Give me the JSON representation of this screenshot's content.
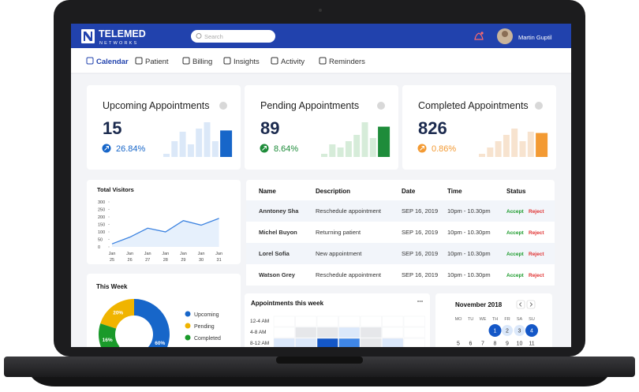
{
  "header": {
    "brand": "TELEMED",
    "brand_sub": "NETWORKS",
    "search_placeholder": "Search",
    "user_name": "Martin Guptil"
  },
  "nav": [
    "Calendar",
    "Patient",
    "Billing",
    "Insights",
    "Activity",
    "Reminders"
  ],
  "cards": [
    {
      "title": "Upcoming Appointments",
      "value": "15",
      "change": "26.84%",
      "color": "#1766c9",
      "light_color": "#dbe8f8",
      "bars": [
        5,
        25,
        40,
        20,
        45,
        55,
        25,
        42
      ]
    },
    {
      "title": "Pending Appointments",
      "value": "89",
      "change": "8.64%",
      "color": "#1e8c3a",
      "light_color": "#d6ecd9",
      "bars": [
        5,
        20,
        15,
        25,
        35,
        55,
        30,
        48
      ]
    },
    {
      "title": "Completed Appointments",
      "value": "826",
      "change": "0.86%",
      "color": "#f39a33",
      "light_color": "#f7e3cf",
      "bars": [
        5,
        15,
        25,
        35,
        45,
        25,
        40,
        38
      ]
    }
  ],
  "visitors": {
    "type": "line",
    "title": "Total Visitors",
    "color": "#3b82e0",
    "categories": [
      {
        "month": "Jan",
        "day": "25"
      },
      {
        "month": "Jan",
        "day": "26"
      },
      {
        "month": "Jan",
        "day": "27"
      },
      {
        "month": "Jan",
        "day": "28"
      },
      {
        "month": "Jan",
        "day": "29"
      },
      {
        "month": "Jan",
        "day": "30"
      },
      {
        "month": "Jan",
        "day": "31"
      }
    ],
    "values": [
      20,
      65,
      125,
      100,
      175,
      145,
      190
    ],
    "ylim": [
      0,
      300
    ],
    "yticks": [
      0,
      50,
      100,
      150,
      200,
      250,
      300
    ]
  },
  "table": {
    "columns": [
      "Name",
      "Description",
      "Date",
      "Time",
      "Status"
    ],
    "actions": [
      "Accept",
      "Reject"
    ],
    "rows": [
      [
        "Anntoney Sha",
        "Reschedule appointment",
        "SEP 16, 2019",
        "10pm - 10.30pm"
      ],
      [
        "Michel Buyon",
        "Returning patient",
        "SEP 16, 2019",
        "10pm - 10.30pm"
      ],
      [
        "Lorel Sofia",
        "New appointment",
        "SEP 16, 2019",
        "10pm - 10.30pm"
      ],
      [
        "Watson Grey",
        "Reschedule appointment",
        "SEP 16, 2019",
        "10pm - 10.30pm"
      ]
    ]
  },
  "this_week": {
    "type": "donut",
    "title": "This Week",
    "series": [
      {
        "name": "Upcoming",
        "color": "#1766c9",
        "value": 60,
        "value_label": "60%"
      },
      {
        "name": "Pending",
        "color": "#f0b400",
        "value": 20,
        "value_label": "20%"
      },
      {
        "name": "Completed",
        "color": "#1a9a2a",
        "value": 16,
        "value_label": "16%"
      }
    ]
  },
  "week_heatmap": {
    "title": "Appointments this week",
    "rows": [
      "12-4 AM",
      "4-8 AM",
      "8-12 AM"
    ],
    "levels": [
      [
        0,
        0,
        0,
        0,
        0,
        0,
        0
      ],
      [
        0,
        1,
        1,
        2,
        1,
        0,
        0
      ],
      [
        2,
        2,
        4,
        3,
        1,
        2,
        0
      ]
    ]
  },
  "calendar": {
    "title": "November 2018",
    "weekdays": [
      "MO",
      "TU",
      "WE",
      "TH",
      "FR",
      "SA",
      "SU"
    ],
    "weeks": [
      [
        null,
        null,
        null,
        "1",
        "2",
        "3",
        "4"
      ],
      [
        "5",
        "6",
        "7",
        "8",
        "9",
        "10",
        "11"
      ]
    ],
    "states": [
      [
        null,
        null,
        null,
        "selected",
        "range",
        "range",
        "selected"
      ],
      [
        null,
        null,
        null,
        null,
        null,
        null,
        null
      ]
    ]
  }
}
